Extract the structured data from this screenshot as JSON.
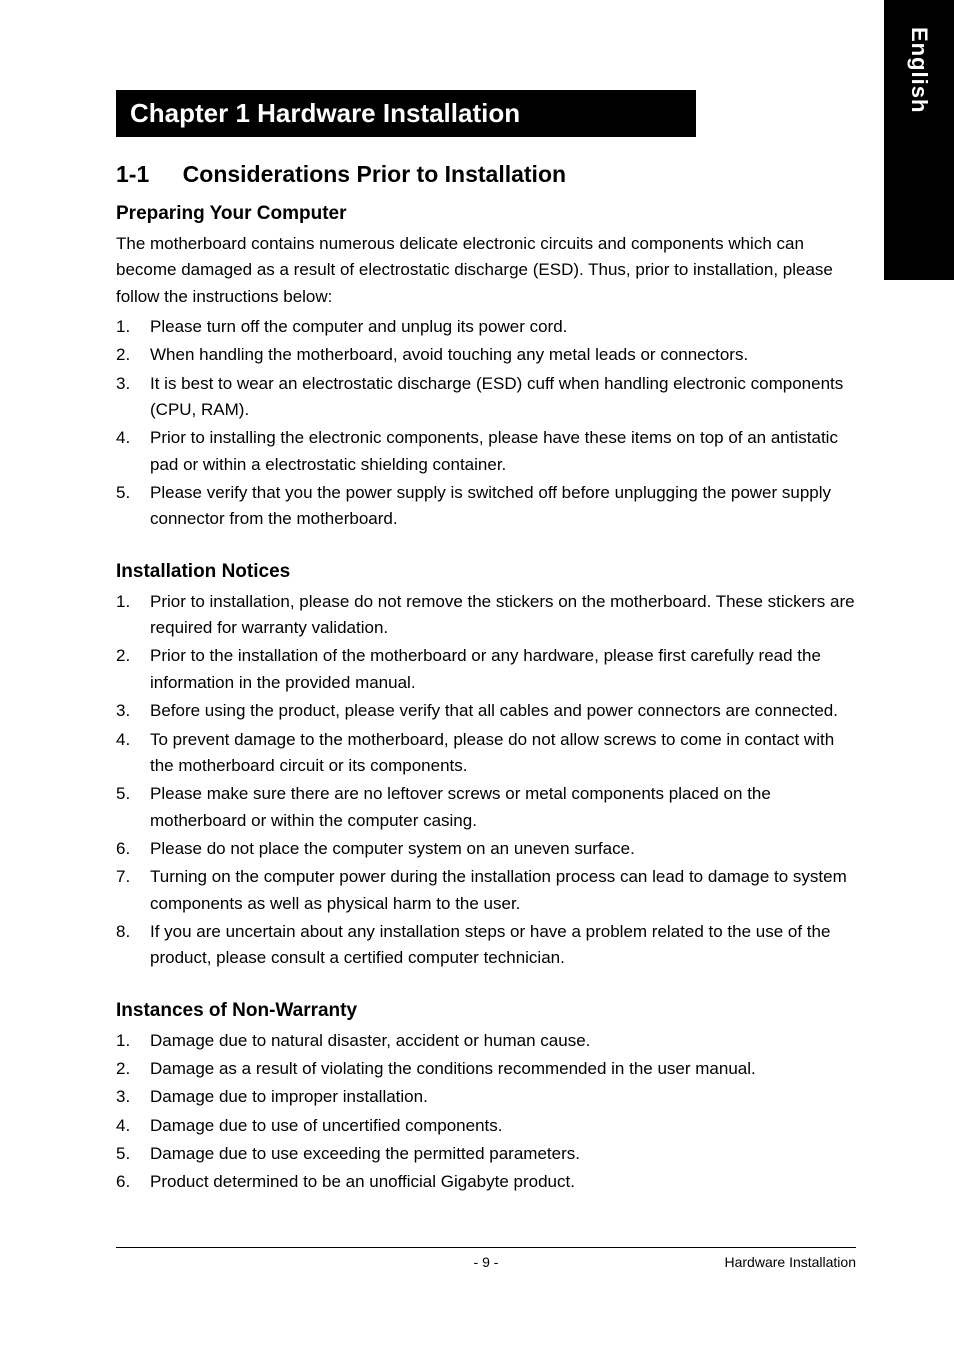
{
  "language_tab": "English",
  "chapter_banner": "Chapter 1 Hardware Installation",
  "section": {
    "number": "1-1",
    "title": "Considerations Prior to Installation"
  },
  "preparing": {
    "heading": "Preparing Your Computer",
    "intro": "The motherboard contains numerous delicate electronic circuits and components which can become damaged as a result of electrostatic discharge (ESD).  Thus, prior to installation, please follow the instructions below:",
    "items": [
      "Please turn off the computer and unplug its power cord.",
      "When handling the motherboard, avoid touching any metal leads or connectors.",
      "It is best to wear an electrostatic discharge (ESD) cuff when handling electronic components (CPU, RAM).",
      "Prior to installing the electronic components, please have these items on top of an antistatic pad or within a electrostatic shielding container.",
      "Please verify that you the power supply is switched off before unplugging the power supply connector from the motherboard."
    ]
  },
  "notices": {
    "heading": "Installation Notices",
    "items": [
      "Prior to installation, please do not remove the stickers on the motherboard.  These stickers are required for warranty validation.",
      "Prior to the installation of the motherboard or any hardware, please first carefully read the information in the provided manual.",
      "Before using the product, please verify that all cables and power connectors are connected.",
      "To prevent damage to the motherboard, please do not allow screws to come in contact with the motherboard circuit or its components.",
      "Please make sure there are no leftover screws or metal components placed on the motherboard or within the computer casing.",
      "Please do not place the computer system on an uneven surface.",
      "Turning on the computer power during the installation process can lead to damage to system components as well as physical harm to the user.",
      "If you are uncertain about any installation steps or have a problem related to the use of the product, please consult a certified computer technician."
    ]
  },
  "nonwarranty": {
    "heading": "Instances of Non-Warranty",
    "items": [
      "Damage due to natural disaster, accident or human cause.",
      "Damage as a result of violating the conditions recommended in the user manual.",
      "Damage due to improper installation.",
      "Damage due to use of uncertified components.",
      "Damage due to use exceeding the permitted parameters.",
      "Product determined to be an unofficial Gigabyte product."
    ]
  },
  "footer": {
    "page_number": "- 9 -",
    "title": "Hardware Installation"
  }
}
